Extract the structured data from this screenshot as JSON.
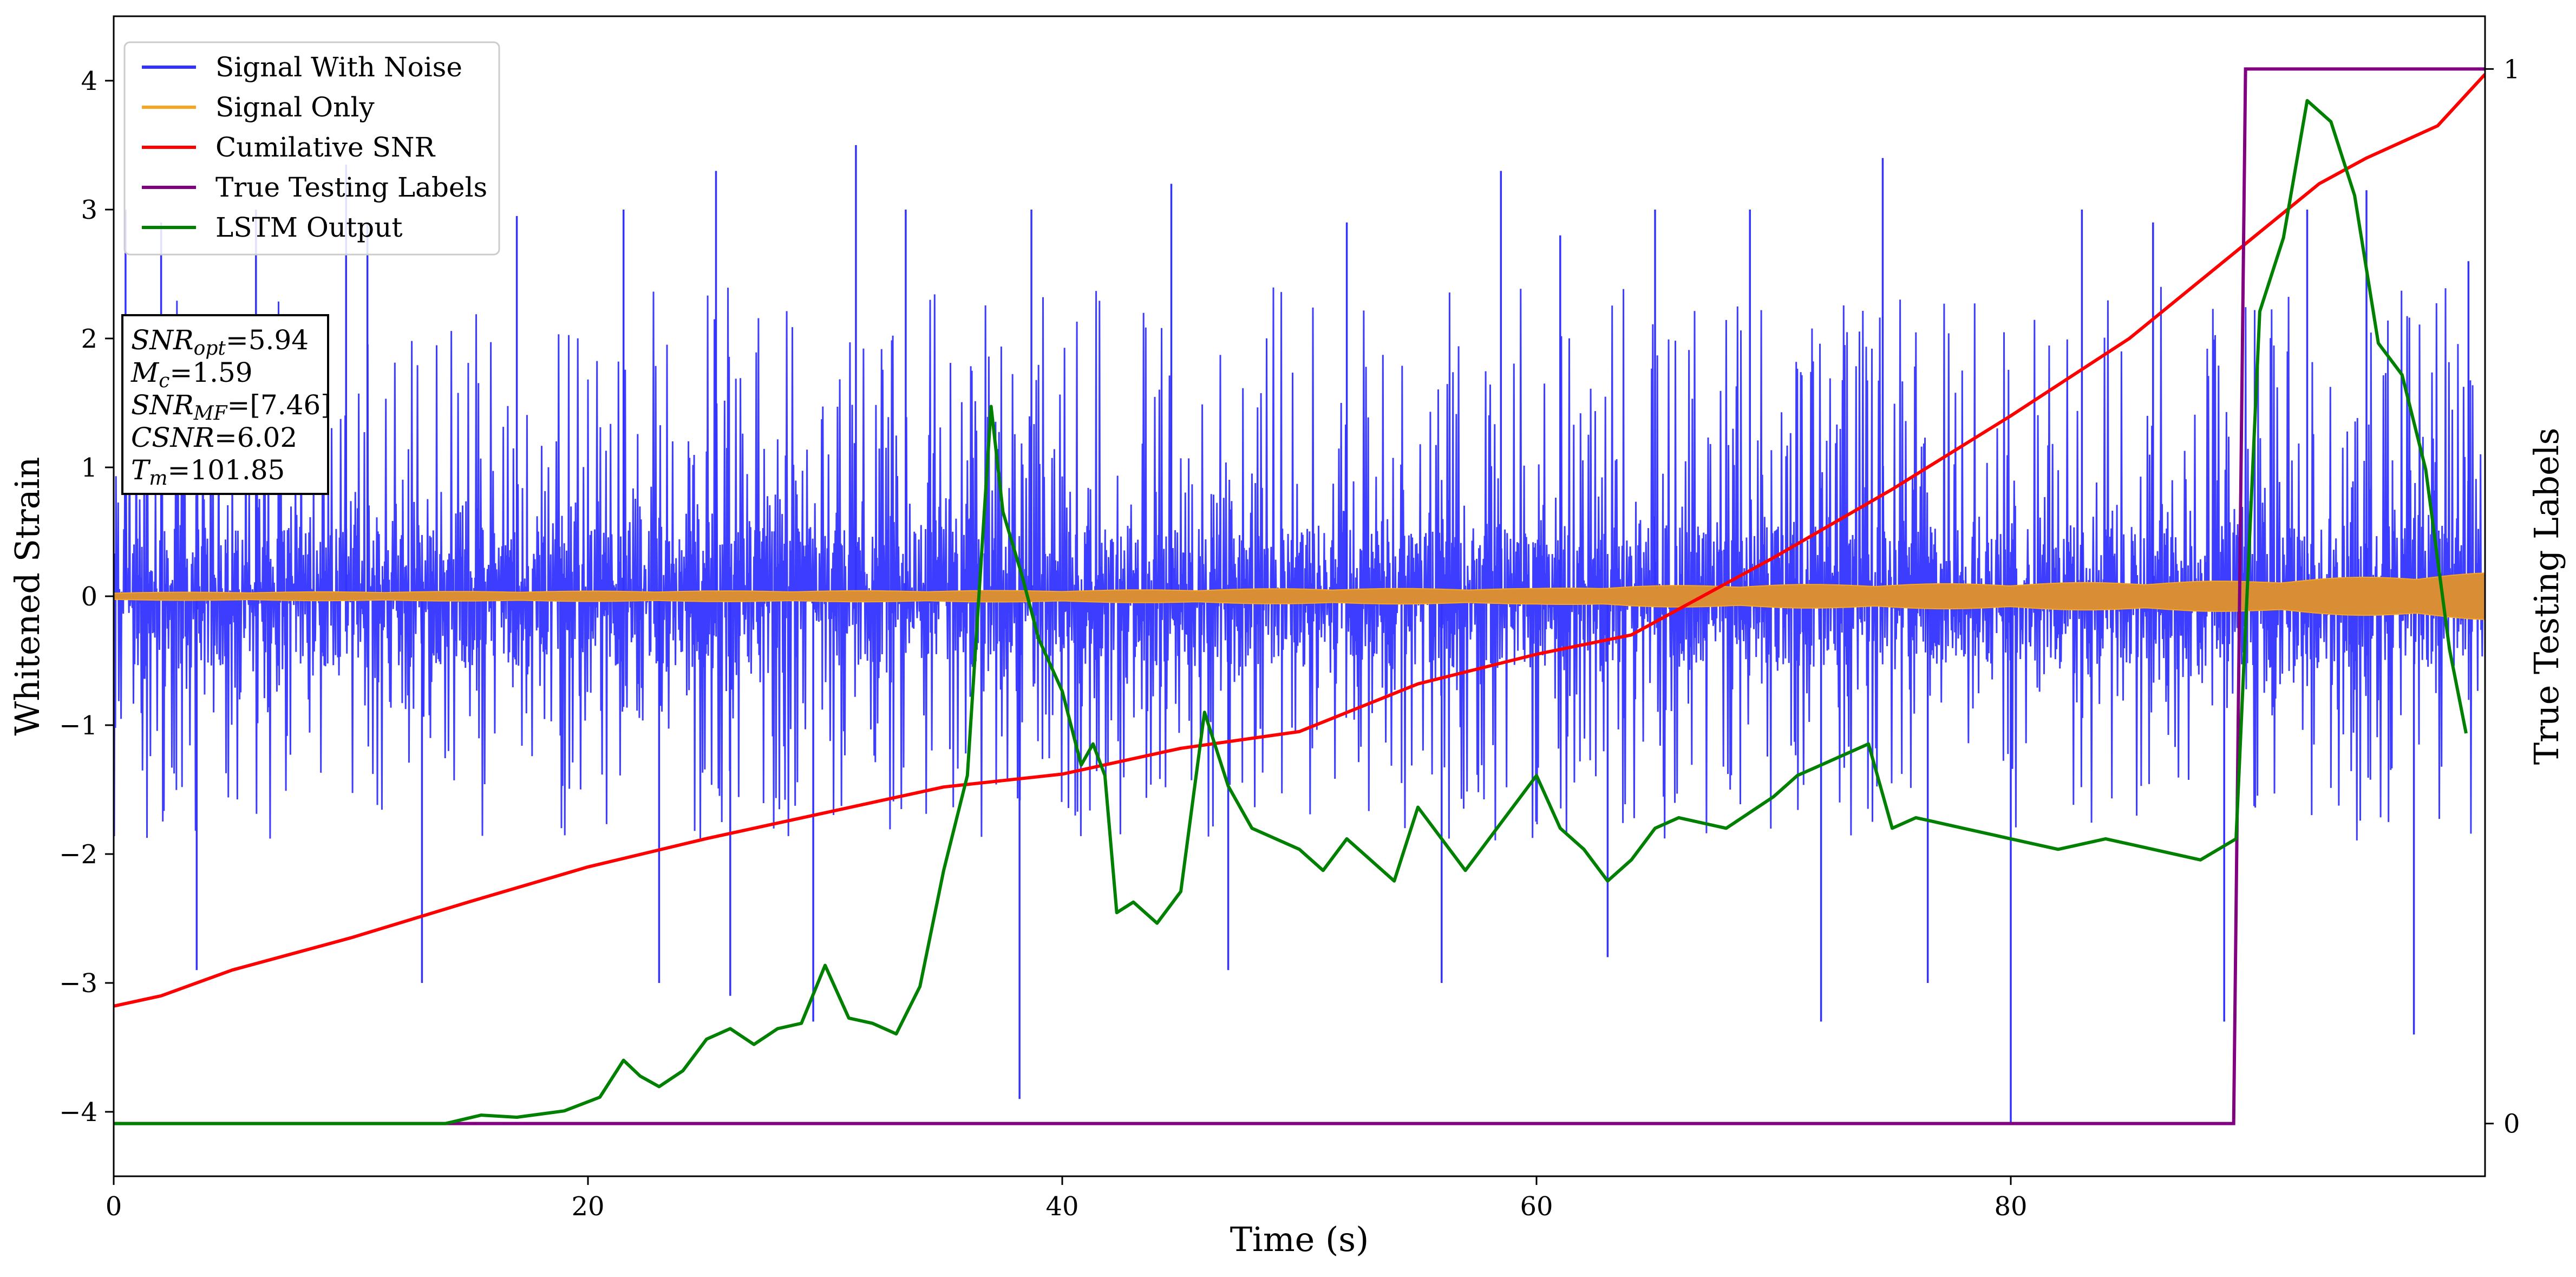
{
  "chart_data": {
    "type": "line",
    "xlabel": "Time (s)",
    "ylabel": "Whitened Strain",
    "y2label": "True Testing Labels",
    "xlim": [
      0,
      100
    ],
    "ylim": [
      -4.5,
      4.5
    ],
    "y2lim": [
      -0.05,
      1.05
    ],
    "xticks": [
      0,
      20,
      40,
      60,
      80
    ],
    "yticks": [
      -4,
      -3,
      -2,
      -1,
      0,
      1,
      2,
      3,
      4
    ],
    "y2ticks": [
      0,
      1
    ],
    "legend_placement": "top-left",
    "grid": false,
    "info_box": [
      {
        "label": "SNR",
        "sub": "opt",
        "value": "=5.94"
      },
      {
        "label": "M",
        "sub": "c",
        "value": "=1.59"
      },
      {
        "label": "SNR",
        "sub": "MF",
        "value": "=[7.46]"
      },
      {
        "label": "CSNR",
        "sub": "",
        "value": "=6.02"
      },
      {
        "label": "T",
        "sub": "m",
        "value": "=101.85"
      }
    ],
    "series": [
      {
        "name": "Signal With Noise",
        "color": "#3333ff",
        "axis": "left",
        "style": "noise",
        "typical_band": [
          -1.9,
          2.4
        ],
        "spikes": [
          [
            0.5,
            3.0
          ],
          [
            2.0,
            2.9
          ],
          [
            3.5,
            -2.9
          ],
          [
            6.0,
            3.0
          ],
          [
            9.8,
            3.35
          ],
          [
            10.7,
            2.9
          ],
          [
            13.0,
            -3.0
          ],
          [
            17.0,
            2.95
          ],
          [
            21.5,
            3.0
          ],
          [
            23.0,
            -3.0
          ],
          [
            25.4,
            3.3
          ],
          [
            26.0,
            -3.1
          ],
          [
            29.5,
            -3.3
          ],
          [
            31.3,
            3.5
          ],
          [
            33.4,
            3.0
          ],
          [
            38.2,
            -3.9
          ],
          [
            38.7,
            3.0
          ],
          [
            44.6,
            3.2
          ],
          [
            47.0,
            -2.9
          ],
          [
            52.0,
            2.9
          ],
          [
            56.0,
            -3.0
          ],
          [
            58.5,
            3.3
          ],
          [
            61.0,
            2.8
          ],
          [
            63.0,
            -2.8
          ],
          [
            65.0,
            3.0
          ],
          [
            69.0,
            3.0
          ],
          [
            72.0,
            -3.3
          ],
          [
            74.6,
            3.4
          ],
          [
            76.5,
            -3.0
          ],
          [
            80.0,
            -4.1
          ],
          [
            83.0,
            3.0
          ],
          [
            86.0,
            2.9
          ],
          [
            89.0,
            -3.3
          ],
          [
            92.5,
            3.0
          ],
          [
            95.0,
            3.15
          ],
          [
            97.0,
            -3.4
          ],
          [
            99.3,
            2.6
          ]
        ]
      },
      {
        "name": "Signal Only",
        "color": "#f5a623",
        "fill_color": "#d98e35",
        "axis": "left",
        "style": "envelope",
        "x": [
          0,
          20,
          40,
          50,
          60,
          64,
          70,
          80,
          90,
          100
        ],
        "amplitude": [
          0.03,
          0.04,
          0.045,
          0.06,
          0.06,
          0.08,
          0.09,
          0.1,
          0.12,
          0.18
        ]
      },
      {
        "name": "Cumilative SNR",
        "color": "#ff0000",
        "axis": "left",
        "x": [
          0,
          2,
          5,
          10,
          15,
          20,
          25,
          30,
          35,
          40,
          45,
          50,
          55,
          60,
          64,
          65,
          70,
          75,
          80,
          85,
          90,
          93,
          95,
          98,
          100
        ],
        "y": [
          -3.18,
          -3.1,
          -2.9,
          -2.65,
          -2.37,
          -2.1,
          -1.88,
          -1.68,
          -1.48,
          -1.38,
          -1.18,
          -1.05,
          -0.68,
          -0.45,
          -0.3,
          -0.2,
          0.3,
          0.83,
          1.4,
          2.0,
          2.75,
          3.2,
          3.4,
          3.65,
          4.05
        ]
      },
      {
        "name": "True Testing Labels",
        "color": "#800080",
        "axis": "right",
        "x": [
          0,
          89.4,
          89.9,
          100
        ],
        "y": [
          0,
          0,
          1,
          1
        ]
      },
      {
        "name": "LSTM Output",
        "color": "#008000",
        "axis": "right",
        "x": [
          0,
          14,
          15.5,
          17,
          19,
          20.5,
          21.5,
          22.2,
          23,
          24,
          25,
          26,
          27,
          28,
          29,
          30,
          31,
          32,
          33,
          34,
          35,
          36,
          37,
          37.5,
          38.3,
          39,
          40,
          40.8,
          41.3,
          41.8,
          42.3,
          43,
          44,
          45,
          46,
          47,
          48,
          50,
          51,
          52,
          53,
          54,
          55,
          56,
          57,
          58,
          60,
          61,
          62,
          63,
          64,
          65,
          66,
          68,
          70,
          71,
          72,
          74,
          75,
          76,
          78,
          80,
          82,
          84,
          86,
          88,
          89.5,
          90.5,
          91.5,
          92.5,
          93.5,
          94.5,
          95.5,
          96.5,
          97.5,
          98.5,
          99.2
        ],
        "y": [
          0.0,
          0.0,
          0.008,
          0.006,
          0.012,
          0.025,
          0.06,
          0.045,
          0.035,
          0.05,
          0.08,
          0.09,
          0.075,
          0.09,
          0.095,
          0.15,
          0.1,
          0.095,
          0.085,
          0.13,
          0.24,
          0.33,
          0.68,
          0.58,
          0.52,
          0.46,
          0.41,
          0.34,
          0.36,
          0.33,
          0.2,
          0.21,
          0.19,
          0.22,
          0.39,
          0.32,
          0.28,
          0.26,
          0.24,
          0.27,
          0.25,
          0.23,
          0.3,
          0.27,
          0.24,
          0.27,
          0.33,
          0.28,
          0.26,
          0.23,
          0.25,
          0.28,
          0.29,
          0.28,
          0.31,
          0.33,
          0.34,
          0.36,
          0.28,
          0.29,
          0.28,
          0.27,
          0.26,
          0.27,
          0.26,
          0.25,
          0.27,
          0.77,
          0.84,
          0.97,
          0.95,
          0.88,
          0.74,
          0.71,
          0.62,
          0.45,
          0.37
        ]
      }
    ]
  }
}
